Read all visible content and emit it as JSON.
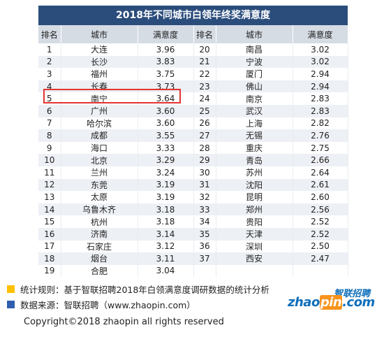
{
  "title": "2018年不同城市白领年终奖满意度",
  "headers": {
    "rank": "排名",
    "city": "城市",
    "score": "满意度"
  },
  "left": [
    {
      "rank": "1",
      "city": "大连",
      "score": "3.96"
    },
    {
      "rank": "2",
      "city": "长沙",
      "score": "3.83"
    },
    {
      "rank": "3",
      "city": "福州",
      "score": "3.75"
    },
    {
      "rank": "4",
      "city": "长春",
      "score": "3.73"
    },
    {
      "rank": "5",
      "city": "南宁",
      "score": "3.64"
    },
    {
      "rank": "6",
      "city": "广州",
      "score": "3.60"
    },
    {
      "rank": "7",
      "city": "哈尔滨",
      "score": "3.60"
    },
    {
      "rank": "8",
      "city": "成都",
      "score": "3.55"
    },
    {
      "rank": "9",
      "city": "海口",
      "score": "3.33"
    },
    {
      "rank": "10",
      "city": "北京",
      "score": "3.29"
    },
    {
      "rank": "11",
      "city": "兰州",
      "score": "3.24"
    },
    {
      "rank": "12",
      "city": "东莞",
      "score": "3.19"
    },
    {
      "rank": "13",
      "city": "太原",
      "score": "3.19"
    },
    {
      "rank": "14",
      "city": "乌鲁木齐",
      "score": "3.18"
    },
    {
      "rank": "15",
      "city": "杭州",
      "score": "3.18"
    },
    {
      "rank": "16",
      "city": "济南",
      "score": "3.14"
    },
    {
      "rank": "17",
      "city": "石家庄",
      "score": "3.12"
    },
    {
      "rank": "18",
      "city": "烟台",
      "score": "3.11"
    },
    {
      "rank": "19",
      "city": "合肥",
      "score": "3.04"
    }
  ],
  "right": [
    {
      "rank": "20",
      "city": "南昌",
      "score": "3.02"
    },
    {
      "rank": "21",
      "city": "宁波",
      "score": "3.02"
    },
    {
      "rank": "22",
      "city": "厦门",
      "score": "2.94"
    },
    {
      "rank": "23",
      "city": "佛山",
      "score": "2.94"
    },
    {
      "rank": "24",
      "city": "南京",
      "score": "2.83"
    },
    {
      "rank": "25",
      "city": "武汉",
      "score": "2.83"
    },
    {
      "rank": "26",
      "city": "上海",
      "score": "2.82"
    },
    {
      "rank": "27",
      "city": "无锡",
      "score": "2.76"
    },
    {
      "rank": "28",
      "city": "重庆",
      "score": "2.75"
    },
    {
      "rank": "29",
      "city": "青岛",
      "score": "2.66"
    },
    {
      "rank": "30",
      "city": "苏州",
      "score": "2.64"
    },
    {
      "rank": "31",
      "city": "沈阳",
      "score": "2.61"
    },
    {
      "rank": "32",
      "city": "昆明",
      "score": "2.60"
    },
    {
      "rank": "33",
      "city": "郑州",
      "score": "2.56"
    },
    {
      "rank": "34",
      "city": "贵阳",
      "score": "2.52"
    },
    {
      "rank": "35",
      "city": "天津",
      "score": "2.52"
    },
    {
      "rank": "36",
      "city": "深圳",
      "score": "2.50"
    },
    {
      "rank": "37",
      "city": "西安",
      "score": "2.47"
    },
    {
      "rank": "",
      "city": "",
      "score": ""
    }
  ],
  "notes": {
    "rule": "统计规则：基于智联招聘2018年白领满意度调研数据的统计分析",
    "source": "数据来源：智联招聘（www.zhaopin.com）"
  },
  "logo": {
    "cn": "智联招聘",
    "en_a": "zhao",
    "en_b": "pin",
    "en_c": ".com"
  },
  "copyright": "Copyright©2018 zhaopin all rights reserved",
  "colors": {
    "header_bg": "#2b4d7c",
    "highlight": "#e3342f",
    "note_yellow": "#ffc000",
    "note_blue": "#2e5fae"
  }
}
